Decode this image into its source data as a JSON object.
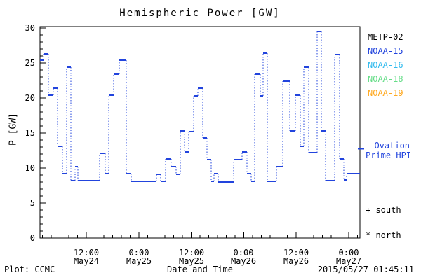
{
  "title": "Hemispheric Power [GW]",
  "y_axis": {
    "label": "P [GW]",
    "ticks": [
      "30",
      "25",
      "20",
      "15",
      "10",
      "5",
      "0"
    ]
  },
  "x_axis": {
    "label": "Date and Time",
    "ticks": [
      {
        "time": "12:00",
        "date": "May24"
      },
      {
        "time": "0:00",
        "date": "May25"
      },
      {
        "time": "12:00",
        "date": "May25"
      },
      {
        "time": "0:00",
        "date": "May26"
      },
      {
        "time": "12:00",
        "date": "May26"
      },
      {
        "time": "0:00",
        "date": "May27"
      }
    ]
  },
  "legend": {
    "satellites": [
      {
        "label": "METP-02",
        "color": "#000000"
      },
      {
        "label": "NOAA-15",
        "color": "#2244DD"
      },
      {
        "label": "NOAA-16",
        "color": "#33BBEE"
      },
      {
        "label": "NOAA-18",
        "color": "#66DD88"
      },
      {
        "label": "NOAA-19",
        "color": "#FFAA22"
      }
    ],
    "model": {
      "line1": "— Ovation",
      "line2": "Prime HPI",
      "color": "#2244DD"
    },
    "markers": [
      {
        "text": "+ south"
      },
      {
        "text": "* north"
      }
    ]
  },
  "footer": {
    "left": "Plot: CCMC",
    "right": "2015/05/27 01:45:11"
  },
  "chart_data": {
    "type": "line",
    "style": "stair-step: solid horizontal segments joined by dotted vertical connectors",
    "title": "Hemispheric Power [GW]",
    "xlabel": "Date and Time",
    "ylabel": "P [GW]",
    "ylim": [
      0,
      30
    ],
    "y_major_step": 5,
    "y_minor_step": 1,
    "x_unit": "hours since 2015-05-24 00:00 UT",
    "xlim": [
      1.41,
      74.57
    ],
    "x_major_ticks_hours": [
      12,
      24,
      36,
      48,
      60,
      72
    ],
    "x_minor_step_hours": 2,
    "grid": false,
    "legend_position": "right, outside plot",
    "legend_marker_gw": 12.75,
    "series": [
      {
        "name": "Ovation Prime HPI",
        "color": "#2244DD",
        "segments_hours_start_end_gw": [
          [
            1.41,
            2.21,
            25.4
          ],
          [
            2.21,
            3.34,
            26.3
          ],
          [
            3.34,
            4.46,
            20.4
          ],
          [
            4.46,
            5.42,
            21.4
          ],
          [
            5.42,
            6.55,
            13.1
          ],
          [
            6.55,
            7.51,
            9.2
          ],
          [
            7.51,
            8.47,
            24.4
          ],
          [
            8.47,
            9.43,
            8.2
          ],
          [
            9.43,
            10.07,
            10.2
          ],
          [
            10.07,
            15.05,
            8.2
          ],
          [
            15.05,
            16.33,
            12.1
          ],
          [
            16.33,
            17.13,
            9.2
          ],
          [
            17.13,
            18.26,
            20.4
          ],
          [
            18.26,
            19.54,
            23.4
          ],
          [
            19.54,
            21.14,
            25.4
          ],
          [
            21.14,
            22.27,
            9.2
          ],
          [
            22.27,
            28.04,
            8.1
          ],
          [
            28.04,
            29.01,
            9.1
          ],
          [
            29.01,
            30.13,
            8.1
          ],
          [
            30.13,
            31.41,
            11.3
          ],
          [
            31.41,
            32.54,
            10.2
          ],
          [
            32.54,
            33.5,
            9.1
          ],
          [
            33.5,
            34.46,
            15.3
          ],
          [
            34.46,
            35.42,
            12.3
          ],
          [
            35.42,
            36.55,
            15.2
          ],
          [
            36.55,
            37.51,
            20.3
          ],
          [
            37.51,
            38.63,
            21.4
          ],
          [
            38.63,
            39.6,
            14.3
          ],
          [
            39.6,
            40.56,
            11.2
          ],
          [
            40.56,
            41.2,
            8.1
          ],
          [
            41.2,
            42.16,
            9.2
          ],
          [
            42.16,
            45.69,
            8.0
          ],
          [
            45.69,
            47.62,
            11.2
          ],
          [
            47.62,
            48.74,
            12.3
          ],
          [
            48.74,
            49.7,
            9.2
          ],
          [
            49.7,
            50.51,
            8.1
          ],
          [
            50.51,
            51.79,
            23.4
          ],
          [
            51.79,
            52.43,
            20.3
          ],
          [
            52.43,
            53.39,
            26.4
          ],
          [
            53.39,
            55.48,
            8.1
          ],
          [
            55.48,
            56.92,
            10.2
          ],
          [
            56.92,
            58.53,
            22.4
          ],
          [
            58.53,
            59.81,
            15.3
          ],
          [
            59.81,
            60.93,
            20.4
          ],
          [
            60.93,
            61.74,
            13.1
          ],
          [
            61.74,
            62.86,
            24.4
          ],
          [
            62.86,
            64.78,
            12.2
          ],
          [
            64.78,
            65.75,
            29.5
          ],
          [
            65.75,
            66.71,
            15.3
          ],
          [
            66.71,
            68.79,
            8.2
          ],
          [
            68.79,
            69.92,
            26.2
          ],
          [
            69.92,
            70.88,
            11.3
          ],
          [
            70.88,
            71.52,
            8.3
          ],
          [
            71.52,
            74.57,
            9.2
          ]
        ]
      }
    ]
  }
}
